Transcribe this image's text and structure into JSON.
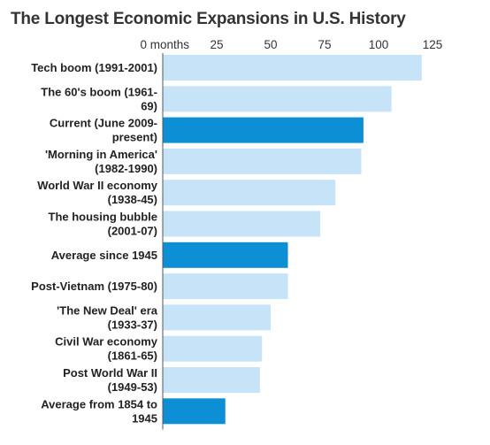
{
  "chart_data": {
    "type": "bar",
    "orientation": "horizontal",
    "title": "The Longest Economic Expansions in U.S. History",
    "xlabel": "",
    "ylabel": "",
    "unit": "months",
    "xlim": [
      0,
      125
    ],
    "ticks": [
      {
        "value": 0,
        "label": "0 months"
      },
      {
        "value": 25,
        "label": "25"
      },
      {
        "value": 50,
        "label": "50"
      },
      {
        "value": 75,
        "label": "75"
      },
      {
        "value": 100,
        "label": "100"
      },
      {
        "value": 125,
        "label": "125"
      }
    ],
    "categories": [
      [
        "Tech boom (1991-2001)"
      ],
      [
        "The 60's boom (1961-",
        "69)"
      ],
      [
        "Current (June 2009-",
        "present)"
      ],
      [
        "'Morning in America'",
        "(1982-1990)"
      ],
      [
        "World War II economy",
        "(1938-45)"
      ],
      [
        "The housing bubble",
        "(2001-07)"
      ],
      [
        "Average since 1945"
      ],
      [
        "Post-Vietnam (1975-80)"
      ],
      [
        "'The New Deal' era",
        "(1933-37)"
      ],
      [
        "Civil War economy",
        "(1861-65)"
      ],
      [
        "Post World War II",
        "(1949-53)"
      ],
      [
        "Average from 1854 to",
        "1945"
      ]
    ],
    "values": [
      120,
      106,
      93,
      92,
      80,
      73,
      58,
      58,
      50,
      46,
      45,
      29
    ],
    "highlighted": [
      false,
      false,
      true,
      false,
      false,
      false,
      true,
      false,
      false,
      false,
      false,
      true
    ],
    "colors": {
      "bar": "#c6e3f7",
      "highlight": "#0d8fd6",
      "axis": "#555555",
      "text": "#222222"
    },
    "grid": false,
    "legend": "none"
  }
}
